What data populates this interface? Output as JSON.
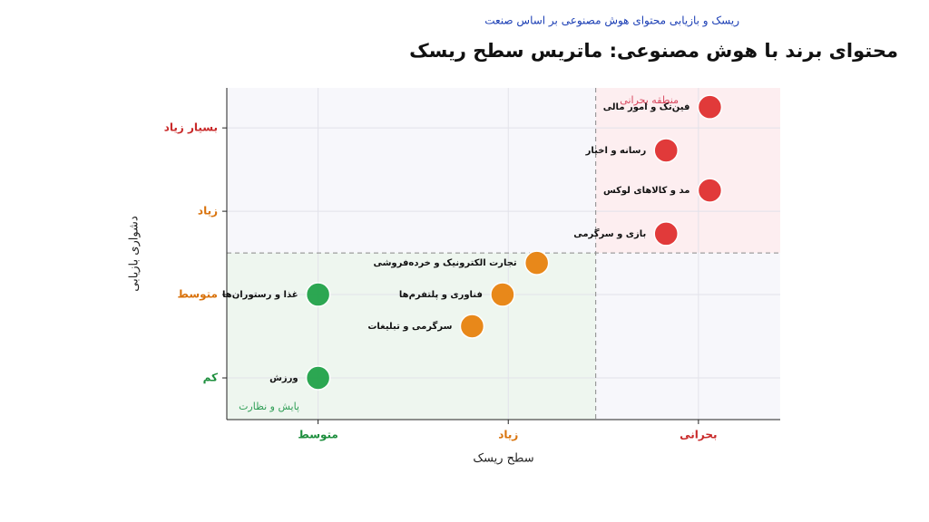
{
  "chart_data": {
    "type": "scatter",
    "title": "محتوای برند با هوش مصنوعی: ماتریس سطح ریسک",
    "subtitle": "ریسک و بازیابی محتوای هوش مصنوعی بر اساس صنعت",
    "x_label": "سطح ریسک",
    "y_label": "دشواری بازیابی",
    "xlim": [
      -0.48,
      2.43
    ],
    "ylim": [
      -0.5,
      3.48
    ],
    "xticks": [
      {
        "value": 0,
        "label": "متوسط"
      },
      {
        "value": 1,
        "label": "زیاد"
      },
      {
        "value": 2,
        "label": "بحرانی"
      }
    ],
    "xtick_colors": [
      "#1e8f3e",
      "#d9730d",
      "#c92a2a"
    ],
    "yticks": [
      {
        "value": 0,
        "label": "کم"
      },
      {
        "value": 1,
        "label": "متوسط"
      },
      {
        "value": 2,
        "label": "زیاد"
      },
      {
        "value": 3,
        "label": "بسیار زیاد"
      }
    ],
    "ytick_colors": [
      "#1e8f3e",
      "#d9730d",
      "#d9730d",
      "#c92a2a"
    ],
    "grid": true,
    "thresholds": {
      "x": 1.46,
      "y": 1.5
    },
    "zones": [
      {
        "label": "منطقه بحرانی",
        "color": "#d9485f"
      },
      {
        "label": "پایش و نظارت",
        "color": "#2f9e56"
      }
    ],
    "points": [
      {
        "label": "فین‌تک و امور مالی",
        "x": 2.06,
        "y": 3.25,
        "color": "#e03131"
      },
      {
        "label": "رسانه و اخبار",
        "x": 1.83,
        "y": 2.73,
        "color": "#e03131"
      },
      {
        "label": "مد و کالاهای لوکس",
        "x": 2.06,
        "y": 2.25,
        "color": "#e03131"
      },
      {
        "label": "بازی و سرگرمی",
        "x": 1.83,
        "y": 1.73,
        "color": "#e03131"
      },
      {
        "label": "تجارت الکترونیک و خرده‌فروشی",
        "x": 1.15,
        "y": 1.38,
        "color": "#e8830f"
      },
      {
        "label": "فناوری و پلتفرم‌ها",
        "x": 0.97,
        "y": 1.0,
        "color": "#e8830f"
      },
      {
        "label": "سرگرمی و تبلیغات",
        "x": 0.81,
        "y": 0.62,
        "color": "#e8830f"
      },
      {
        "label": "غذا و رستوران‌ها",
        "x": 0,
        "y": 1.0,
        "color": "#22a34a"
      },
      {
        "label": "ورزش",
        "x": 0,
        "y": 0,
        "color": "#22a34a"
      }
    ]
  }
}
